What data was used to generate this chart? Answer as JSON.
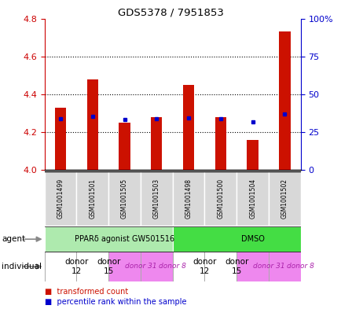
{
  "title": "GDS5378 / 7951853",
  "samples": [
    "GSM1001499",
    "GSM1001501",
    "GSM1001505",
    "GSM1001503",
    "GSM1001498",
    "GSM1001500",
    "GSM1001504",
    "GSM1001502"
  ],
  "red_values": [
    4.33,
    4.48,
    4.25,
    4.28,
    4.45,
    4.28,
    4.16,
    4.73
  ],
  "blue_values": [
    4.27,
    4.285,
    4.265,
    4.27,
    4.275,
    4.27,
    4.255,
    4.295
  ],
  "ylim_left": [
    4.0,
    4.8
  ],
  "ylim_right": [
    0,
    100
  ],
  "yticks_left": [
    4.0,
    4.2,
    4.4,
    4.6,
    4.8
  ],
  "yticks_right": [
    0,
    25,
    50,
    75,
    100
  ],
  "ytick_labels_right": [
    "0",
    "25",
    "50",
    "75",
    "100%"
  ],
  "agent_groups": [
    {
      "label": "PPARδ agonist GW501516",
      "color": "#aeeaae",
      "span": [
        0,
        4
      ]
    },
    {
      "label": "DMSO",
      "color": "#44dd44",
      "span": [
        4,
        8
      ]
    }
  ],
  "individual_groups": [
    {
      "label": "donor\n12",
      "color": "#ffffff",
      "span": [
        0,
        1
      ],
      "fontsize": 7.5,
      "italic": false
    },
    {
      "label": "donor\n15",
      "color": "#ffffff",
      "span": [
        1,
        2
      ],
      "fontsize": 7.5,
      "italic": false
    },
    {
      "label": "donor 31",
      "color": "#ee88ee",
      "span": [
        2,
        3
      ],
      "fontsize": 6.5,
      "italic": true
    },
    {
      "label": "donor 8",
      "color": "#ee88ee",
      "span": [
        3,
        4
      ],
      "fontsize": 6.5,
      "italic": true
    },
    {
      "label": "donor\n12",
      "color": "#ffffff",
      "span": [
        4,
        5
      ],
      "fontsize": 7.5,
      "italic": false
    },
    {
      "label": "donor\n15",
      "color": "#ffffff",
      "span": [
        5,
        6
      ],
      "fontsize": 7.5,
      "italic": false
    },
    {
      "label": "donor 31",
      "color": "#ee88ee",
      "span": [
        6,
        7
      ],
      "fontsize": 6.5,
      "italic": true
    },
    {
      "label": "donor 8",
      "color": "#ee88ee",
      "span": [
        7,
        8
      ],
      "fontsize": 6.5,
      "italic": true
    }
  ],
  "red_color": "#cc1100",
  "blue_color": "#0000cc",
  "left_axis_color": "#cc0000",
  "right_axis_color": "#0000cc",
  "bar_width": 0.35,
  "grid_yticks": [
    4.2,
    4.4,
    4.6
  ]
}
